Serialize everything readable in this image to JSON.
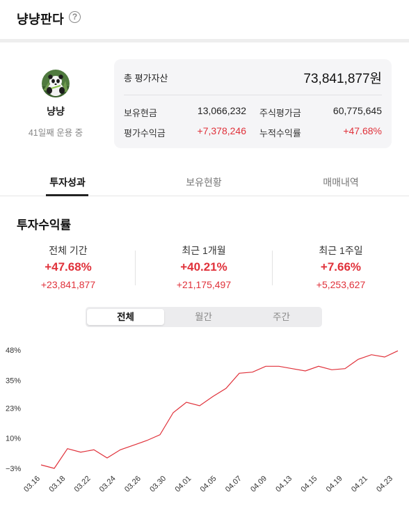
{
  "header": {
    "title": "냥냥판다",
    "help_icon": "help-circle-icon"
  },
  "profile": {
    "name": "냥냥",
    "days_text": "41일째 운용 중",
    "avatar": "panda-avatar"
  },
  "summary": {
    "total_label": "총 평가자산",
    "total_value": "73,841,877원",
    "rows": [
      {
        "label": "보유현금",
        "value": "13,066,232",
        "label2": "주식평가금",
        "value2": "60,775,645"
      },
      {
        "label": "평가수익금",
        "value": "+7,378,246",
        "label2": "누적수익률",
        "value2": "+47.68%"
      }
    ]
  },
  "tabs": [
    {
      "label": "투자성과",
      "active": true
    },
    {
      "label": "보유현황",
      "active": false
    },
    {
      "label": "매매내역",
      "active": false
    }
  ],
  "section_title": "투자수익률",
  "stats": [
    {
      "label": "전체 기간",
      "pct": "+47.68%",
      "amount": "+23,841,877"
    },
    {
      "label": "최근 1개월",
      "pct": "+40.21%",
      "amount": "+21,175,497"
    },
    {
      "label": "최근 1주일",
      "pct": "+7.66%",
      "amount": "+5,253,627"
    }
  ],
  "segments": [
    {
      "label": "전체",
      "active": true
    },
    {
      "label": "월간",
      "active": false
    },
    {
      "label": "주간",
      "active": false
    }
  ],
  "colors": {
    "positive": "#e0313a",
    "line": "#e0313a"
  },
  "chart_data": {
    "type": "line",
    "title": "",
    "xlabel": "",
    "ylabel": "",
    "y_ticks": [
      "48%",
      "35%",
      "23%",
      "10%",
      "−3%"
    ],
    "ylim": [
      -3,
      48
    ],
    "x_tick_labels": [
      "03.16",
      "03.18",
      "03.22",
      "03.24",
      "03.26",
      "03.30",
      "04.01",
      "04.05",
      "04.07",
      "04.09",
      "04.13",
      "04.15",
      "04.19",
      "04.21",
      "04.23"
    ],
    "series": [
      {
        "values": [
          -1.5,
          -3.0,
          5.5,
          4.0,
          5.0,
          1.5,
          5.0,
          7.0,
          9.0,
          11.5,
          21.0,
          25.5,
          24.0,
          28.0,
          31.5,
          38.0,
          38.5,
          41.0,
          41.0,
          40.0,
          39.0,
          41.0,
          39.5,
          40.0,
          44.0,
          46.0,
          45.0,
          47.68
        ]
      }
    ],
    "grid": false,
    "legend": "none"
  }
}
